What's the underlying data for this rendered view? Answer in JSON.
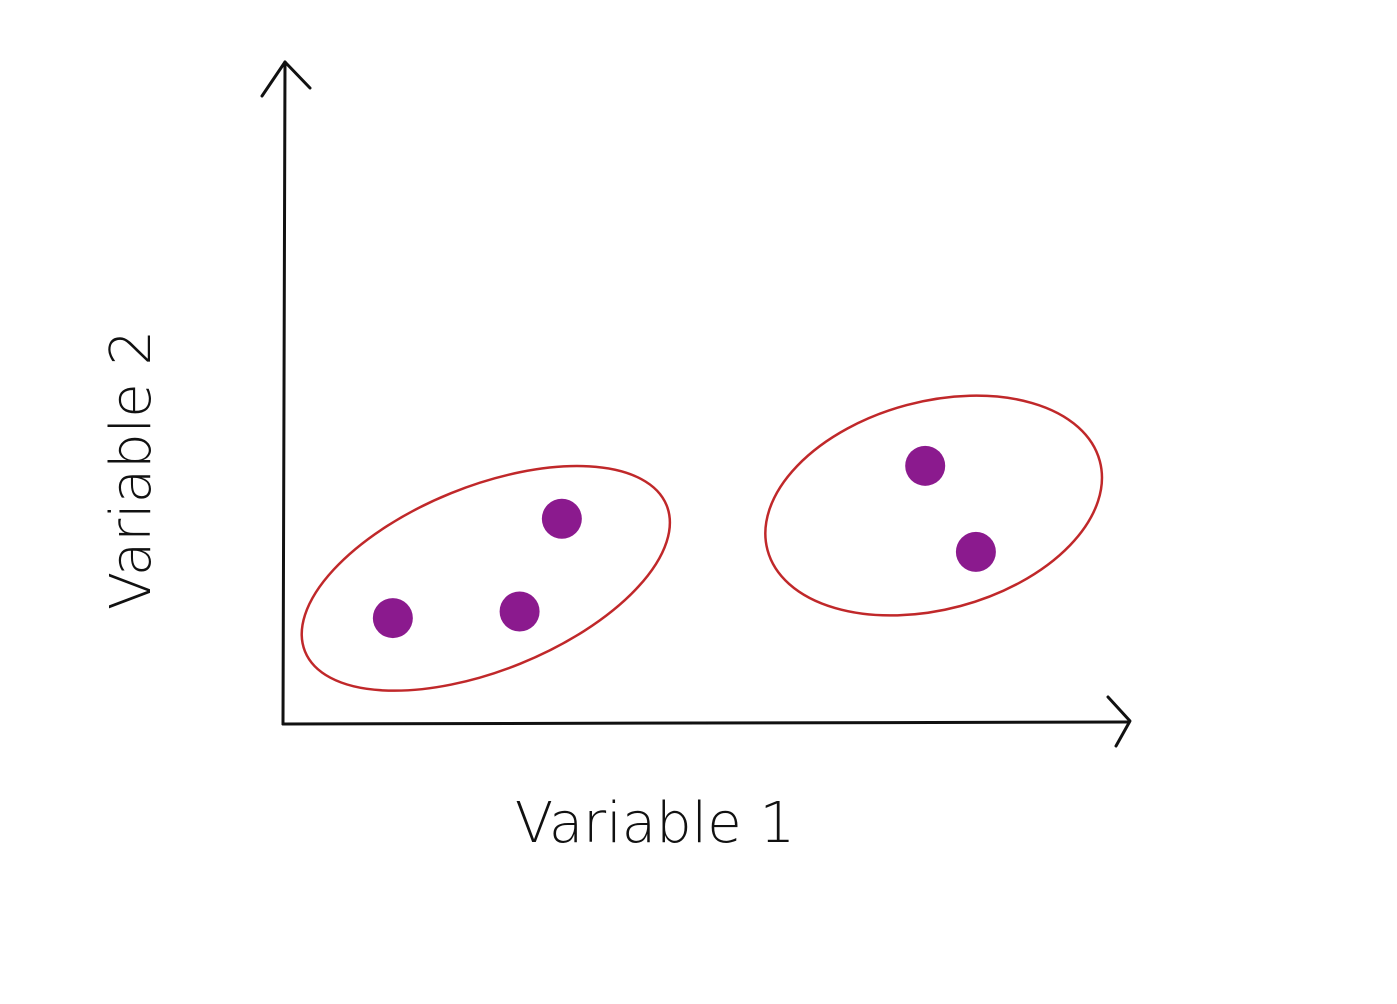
{
  "chart_data": {
    "type": "scatter",
    "title": "",
    "xlabel": "Variable 1",
    "ylabel": "Variable 2",
    "xlim": [
      0,
      10
    ],
    "ylim": [
      0,
      10
    ],
    "grid": false,
    "legend": "none",
    "points": [
      {
        "x": 1.3,
        "y": 1.6
      },
      {
        "x": 2.8,
        "y": 1.7
      },
      {
        "x": 3.3,
        "y": 3.1
      },
      {
        "x": 7.6,
        "y": 3.9
      },
      {
        "x": 8.2,
        "y": 2.6
      }
    ],
    "clusters": [
      {
        "center": [
          2.4,
          2.2
        ],
        "point_indices": [
          0,
          1,
          2
        ]
      },
      {
        "center": [
          7.7,
          3.3
        ],
        "point_indices": [
          3,
          4
        ]
      }
    ]
  },
  "colors": {
    "point": "#8b1a8e",
    "cluster_outline": "#c0282a",
    "axis": "#111111"
  }
}
